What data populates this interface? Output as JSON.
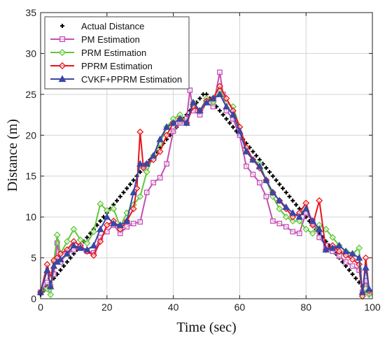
{
  "chart_data": {
    "type": "line",
    "xlabel": "Time (sec)",
    "ylabel": "Distance (m)",
    "xlim": [
      0,
      100
    ],
    "ylim": [
      0,
      35
    ],
    "xticks": [
      0,
      20,
      40,
      60,
      80,
      100
    ],
    "yticks": [
      0,
      5,
      10,
      15,
      20,
      25,
      30,
      35
    ],
    "grid": true,
    "legend_position": "top-left",
    "series": [
      {
        "name": "Actual Distance",
        "color": "#000000",
        "marker": "plus",
        "x": [
          0,
          1,
          2,
          3,
          4,
          5,
          6,
          7,
          8,
          9,
          10,
          11,
          12,
          13,
          14,
          15,
          16,
          17,
          18,
          19,
          20,
          21,
          22,
          23,
          24,
          25,
          26,
          27,
          28,
          29,
          30,
          31,
          32,
          33,
          34,
          35,
          36,
          37,
          38,
          39,
          40,
          41,
          42,
          43,
          44,
          45,
          46,
          47,
          48,
          49,
          50,
          51,
          52,
          53,
          54,
          55,
          56,
          57,
          58,
          59,
          60,
          61,
          62,
          63,
          64,
          65,
          66,
          67,
          68,
          69,
          70,
          71,
          72,
          73,
          74,
          75,
          76,
          77,
          78,
          79,
          80,
          81,
          82,
          83,
          84,
          85,
          86,
          87,
          88,
          89,
          90,
          91,
          92,
          93,
          94,
          95,
          96,
          97,
          98,
          99
        ],
        "y": [
          0.5,
          1,
          1.5,
          2,
          2.5,
          3,
          3.5,
          4,
          4.5,
          5,
          5.5,
          6,
          6.5,
          7,
          7.5,
          8,
          8.5,
          9,
          9.5,
          10,
          10.5,
          11,
          11.5,
          12,
          12.5,
          13,
          13.5,
          14,
          14.5,
          15,
          15.5,
          16,
          16.5,
          17,
          17.5,
          18,
          18.5,
          19,
          19.5,
          20,
          20.5,
          21,
          21.5,
          22,
          22.5,
          23,
          23.5,
          24,
          24.5,
          25,
          25,
          24.5,
          24,
          23.5,
          23,
          22.5,
          22,
          21.5,
          21,
          20.5,
          20,
          19.5,
          19,
          18.5,
          18,
          17.5,
          17,
          16.5,
          16,
          15.5,
          15,
          14.5,
          14,
          13.5,
          13,
          12.5,
          12,
          11.5,
          11,
          10.5,
          10,
          9.5,
          9,
          8.5,
          8,
          7.5,
          7,
          6.5,
          6,
          5.5,
          5,
          4.5,
          4,
          3.5,
          3,
          2.5,
          2,
          1.5,
          1,
          0.5
        ]
      },
      {
        "name": "PM Estimation",
        "color": "#c34fb4",
        "marker": "square",
        "x": [
          0,
          2,
          3,
          4,
          5,
          6,
          8,
          10,
          12,
          14,
          16,
          18,
          20,
          22,
          24,
          26,
          28,
          30,
          32,
          34,
          36,
          38,
          40,
          42,
          44,
          45,
          46,
          48,
          50,
          52,
          54,
          55,
          56,
          58,
          60,
          62,
          64,
          66,
          68,
          70,
          72,
          74,
          76,
          78,
          80,
          82,
          84,
          86,
          88,
          90,
          92,
          94,
          96,
          97,
          98,
          99
        ],
        "y": [
          0.8,
          2,
          1.5,
          3,
          6.8,
          4.5,
          5.5,
          6,
          6.2,
          5.8,
          5.6,
          7.5,
          8.2,
          9,
          8,
          8.8,
          9.2,
          9.4,
          13,
          14.2,
          14.8,
          16.5,
          20.5,
          21.5,
          22,
          25.5,
          23,
          22.5,
          24,
          23.5,
          27.7,
          25,
          23,
          22,
          20,
          16.2,
          15.2,
          14.2,
          12.5,
          9.5,
          9.2,
          8.8,
          8.2,
          8,
          10.5,
          9.5,
          7.5,
          6.5,
          5.8,
          5.2,
          4.5,
          4,
          3.5,
          0.8,
          2.2,
          0.8
        ]
      },
      {
        "name": "PRM Estimation",
        "color": "#62c63a",
        "marker": "diamond",
        "x": [
          0,
          2,
          3,
          4,
          5,
          6,
          8,
          10,
          12,
          14,
          16,
          18,
          20,
          22,
          24,
          26,
          28,
          30,
          32,
          34,
          36,
          38,
          40,
          42,
          44,
          46,
          48,
          50,
          52,
          54,
          56,
          58,
          60,
          62,
          64,
          66,
          68,
          70,
          72,
          74,
          76,
          78,
          80,
          82,
          84,
          86,
          88,
          90,
          92,
          94,
          96,
          97,
          98,
          99
        ],
        "y": [
          0.8,
          1.2,
          0.5,
          4.5,
          7.8,
          5.5,
          7,
          8.5,
          7.2,
          6.8,
          8.2,
          11.6,
          10.8,
          11,
          8.8,
          10.5,
          11.5,
          12.5,
          15.5,
          17.5,
          19,
          21,
          22,
          22.5,
          21.5,
          24,
          23,
          24.5,
          24,
          25.5,
          24,
          23.5,
          21,
          18,
          17,
          16.5,
          14.5,
          12.5,
          11,
          10,
          9.5,
          9.5,
          8.5,
          8,
          9,
          8.5,
          7.5,
          6.5,
          5.8,
          5.5,
          6.2,
          0.5,
          1.2,
          0.5
        ]
      },
      {
        "name": "PPRM Estimation",
        "color": "#e8141c",
        "marker": "diamond",
        "x": [
          0,
          2,
          3,
          4,
          5,
          6,
          8,
          10,
          12,
          14,
          16,
          18,
          20,
          22,
          24,
          26,
          28,
          29,
          30,
          31,
          32,
          34,
          36,
          38,
          40,
          42,
          44,
          46,
          48,
          50,
          52,
          54,
          56,
          58,
          60,
          62,
          64,
          66,
          68,
          70,
          72,
          74,
          76,
          78,
          80,
          82,
          84,
          86,
          88,
          90,
          92,
          94,
          96,
          97,
          98,
          99
        ],
        "y": [
          0.8,
          4.2,
          2.5,
          4.7,
          5,
          5.5,
          6,
          7,
          6.5,
          5.8,
          5.3,
          7,
          9,
          9.5,
          8.5,
          9.5,
          11,
          13.5,
          20.4,
          16,
          16.5,
          17,
          18,
          20,
          21.5,
          22,
          21.5,
          23.5,
          23,
          24.2,
          24.5,
          26,
          24.5,
          23,
          21,
          18.5,
          17,
          16,
          14.5,
          13,
          12,
          11,
          10,
          10.5,
          11.7,
          9,
          12,
          6,
          6.5,
          5.8,
          5.3,
          4.8,
          4.2,
          0.3,
          5,
          1
        ]
      },
      {
        "name": "CVKF+PPRM Estimation",
        "color": "#3b46a6",
        "marker": "triangle",
        "x": [
          0,
          2,
          3,
          4,
          5,
          6,
          8,
          10,
          12,
          14,
          16,
          18,
          20,
          22,
          24,
          26,
          28,
          30,
          32,
          34,
          36,
          38,
          40,
          42,
          44,
          46,
          48,
          50,
          52,
          54,
          56,
          58,
          60,
          62,
          64,
          66,
          68,
          70,
          72,
          74,
          76,
          78,
          80,
          82,
          84,
          86,
          88,
          90,
          92,
          94,
          96,
          97,
          98,
          99
        ],
        "y": [
          0.8,
          3.5,
          1.5,
          4,
          4.5,
          4.8,
          5.5,
          6.5,
          6.2,
          6,
          6.5,
          8.5,
          10,
          9.2,
          9,
          9.5,
          13,
          16.5,
          16.5,
          17.5,
          19.5,
          21,
          21.5,
          22,
          21.5,
          24,
          23,
          24,
          24.5,
          25,
          23.5,
          22.5,
          20.5,
          18,
          17,
          16.2,
          14.5,
          13,
          12,
          11.2,
          10.5,
          10,
          11,
          9.5,
          8.5,
          6,
          6.2,
          6.5,
          5.8,
          5.5,
          5,
          0.8,
          3.8,
          1.2
        ]
      }
    ]
  }
}
